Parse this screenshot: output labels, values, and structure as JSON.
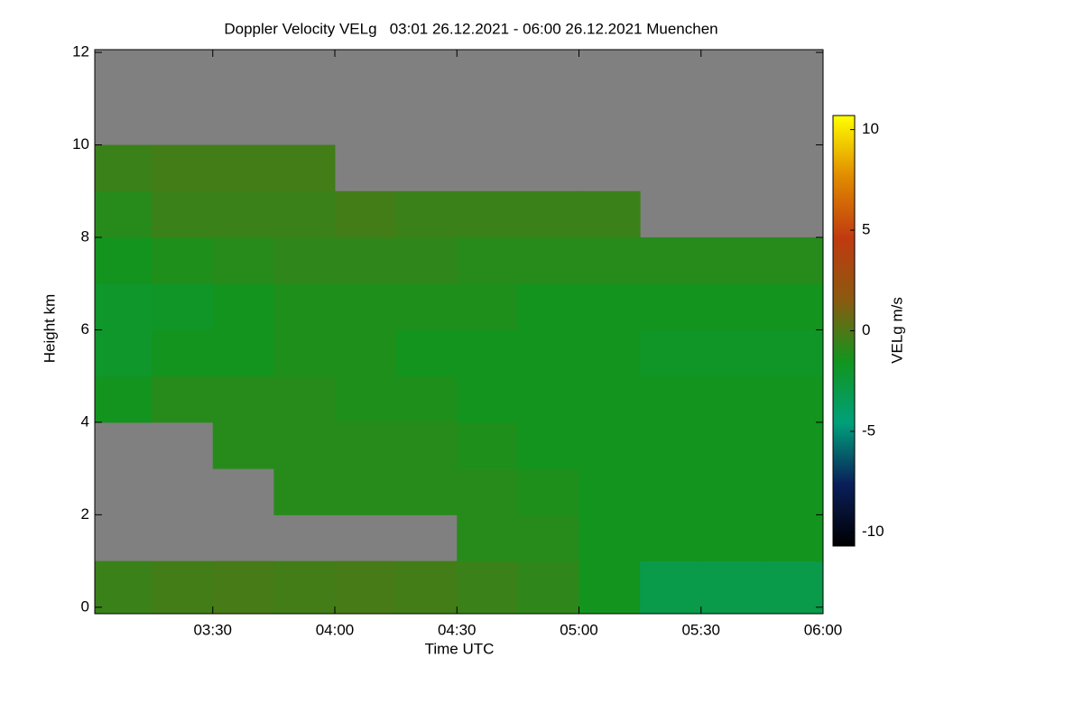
{
  "chart_data": {
    "type": "heatmap",
    "title": "Doppler Velocity VELg   03:01 26.12.2021 - 06:00 26.12.2021 Muenchen",
    "x_label": "Time UTC",
    "y_label": "Height km",
    "colorbar_label": "VELg m/s",
    "xbins": [
      "03:01",
      "03:15",
      "03:30",
      "03:45",
      "04:00",
      "04:15",
      "04:30",
      "04:45",
      "05:00",
      "05:15",
      "05:30",
      "05:45",
      "06:00"
    ],
    "ybins": [
      0,
      1,
      2,
      3,
      4,
      5,
      6,
      7,
      8,
      9,
      10,
      11,
      12
    ],
    "values": [
      [
        -0.5,
        -0.3,
        -0.2,
        -0.3,
        -0.2,
        -0.3,
        -0.5,
        -0.8,
        -1.5,
        -3,
        -3,
        -3
      ],
      [
        null,
        null,
        null,
        null,
        null,
        null,
        -1,
        -1,
        -1.5,
        -1.5,
        -1.5,
        -1.5
      ],
      [
        null,
        null,
        null,
        -1,
        -1,
        -1,
        -1,
        -1.2,
        -1.5,
        -1.5,
        -1.5,
        -1.5
      ],
      [
        null,
        null,
        -1,
        -1,
        -1,
        -1,
        -1.2,
        -1.5,
        -1.5,
        -1.5,
        -1.5,
        -1.5
      ],
      [
        -1.5,
        -1,
        -1,
        -1,
        -1.2,
        -1.2,
        -1.5,
        -1.5,
        -1.5,
        -1.5,
        -1.5,
        -1.5
      ],
      [
        -2,
        -1.5,
        -1.5,
        -1.2,
        -1.2,
        -1.5,
        -1.5,
        -1.5,
        -1.5,
        -1.8,
        -1.8,
        -1.8
      ],
      [
        -2,
        -1.8,
        -1.5,
        -1.2,
        -1.2,
        -1.2,
        -1.2,
        -1.5,
        -1.5,
        -1.5,
        -1.5,
        -1.5
      ],
      [
        -1.5,
        -1.2,
        -1,
        -0.8,
        -0.8,
        -0.8,
        -1,
        -1,
        -1,
        -1,
        -1,
        -1
      ],
      [
        -1,
        -0.5,
        -0.5,
        -0.5,
        -0.3,
        -0.5,
        -0.5,
        -0.5,
        -0.5,
        null,
        null,
        null
      ],
      [
        -0.5,
        -0.3,
        -0.3,
        -0.3,
        null,
        null,
        null,
        null,
        null,
        null,
        null,
        null
      ],
      [
        null,
        null,
        null,
        null,
        null,
        null,
        null,
        null,
        null,
        null,
        null,
        null
      ],
      [
        null,
        null,
        null,
        null,
        null,
        null,
        null,
        null,
        null,
        null,
        null,
        null
      ]
    ],
    "nodata_color": "#808080",
    "colormap": [
      "#000000",
      "#0a1e5a",
      "#00a07a",
      "#12951e",
      "#8a5a10",
      "#c03a10",
      "#e08a00",
      "#ffff00"
    ],
    "xlim": [
      "03:01",
      "06:00"
    ],
    "xticks": [
      "03:30",
      "04:00",
      "04:30",
      "05:00",
      "05:30",
      "06:00"
    ],
    "ylim": [
      -0.14,
      12.06
    ],
    "yticks": [
      0,
      2,
      4,
      6,
      8,
      10,
      12
    ],
    "clim": [
      -10.7,
      10.7
    ],
    "cticks": [
      -10,
      -5,
      0,
      5,
      10
    ]
  }
}
